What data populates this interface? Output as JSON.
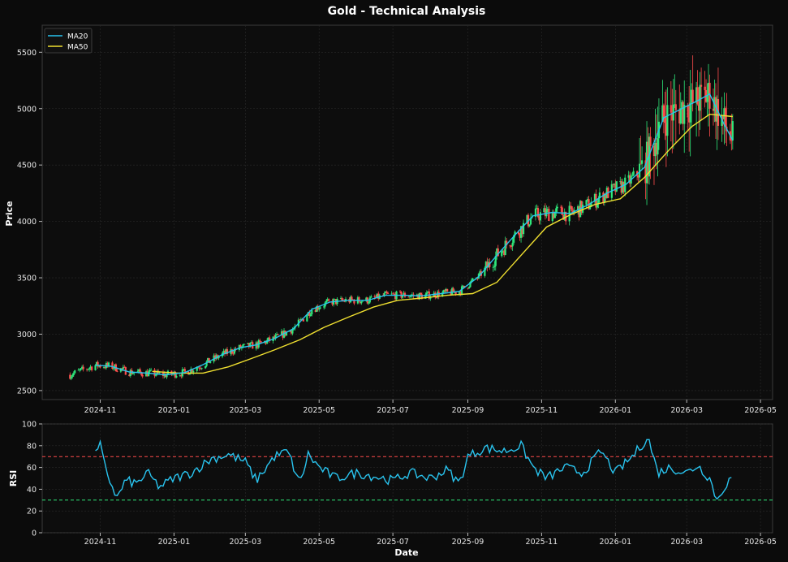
{
  "title": "Gold - Technical Analysis",
  "colors": {
    "background": "#0b0b0b",
    "panel": "#0d0d0d",
    "grid": "#2a2a2a",
    "up": "#2ee87a",
    "down": "#ff4d4d",
    "ma20": "#29c4ef",
    "ma50": "#f0e030",
    "rsi": "#29c4ef",
    "overbought": "#ff4d4d",
    "oversold": "#2ee87a"
  },
  "chart_data": [
    {
      "type": "candlestick",
      "ylabel": "Price",
      "ylim": [
        2420,
        5740
      ],
      "yticks": [
        2500,
        3000,
        3500,
        4000,
        4500,
        5000,
        5500
      ],
      "xticks": [
        "2024-11",
        "2025-01",
        "2025-03",
        "2025-05",
        "2025-07",
        "2025-09",
        "2025-11",
        "2026-01",
        "2026-03",
        "2026-05"
      ],
      "xlim": [
        "2024-09-14",
        "2026-05-11"
      ],
      "grid": true,
      "legend": "top-left",
      "series": [
        {
          "name": "MA20",
          "x": [
            "2024-10-28",
            "2024-11-10",
            "2024-11-25",
            "2024-12-10",
            "2024-12-25",
            "2025-01-10",
            "2025-01-25",
            "2025-02-10",
            "2025-02-25",
            "2025-03-10",
            "2025-03-25",
            "2025-04-10",
            "2025-04-25",
            "2025-05-10",
            "2025-05-25",
            "2025-06-10",
            "2025-06-25",
            "2025-07-10",
            "2025-07-25",
            "2025-08-10",
            "2025-08-25",
            "2025-09-10",
            "2025-09-25",
            "2025-10-10",
            "2025-10-25",
            "2025-11-10",
            "2025-11-25",
            "2025-12-10",
            "2025-12-25",
            "2026-01-10",
            "2026-01-25",
            "2026-02-10",
            "2026-02-25",
            "2026-03-10",
            "2026-03-20",
            "2026-04-01",
            "2026-04-08"
          ],
          "values": [
            2725,
            2715,
            2665,
            2655,
            2640,
            2660,
            2730,
            2820,
            2880,
            2905,
            2960,
            3050,
            3220,
            3285,
            3300,
            3300,
            3345,
            3345,
            3340,
            3360,
            3380,
            3510,
            3700,
            3880,
            4050,
            4080,
            4070,
            4150,
            4250,
            4330,
            4480,
            4920,
            5000,
            5070,
            5130,
            4860,
            4720
          ]
        },
        {
          "name": "MA50",
          "x": [
            "2024-12-14",
            "2025-01-05",
            "2025-01-25",
            "2025-02-15",
            "2025-03-05",
            "2025-03-25",
            "2025-04-15",
            "2025-05-05",
            "2025-05-25",
            "2025-06-15",
            "2025-07-05",
            "2025-07-25",
            "2025-08-15",
            "2025-09-05",
            "2025-09-25",
            "2025-10-15",
            "2025-11-05",
            "2025-11-25",
            "2025-12-15",
            "2026-01-05",
            "2026-01-25",
            "2026-02-15",
            "2026-03-05",
            "2026-03-20",
            "2026-04-08"
          ],
          "values": [
            2670,
            2655,
            2655,
            2710,
            2780,
            2860,
            2950,
            3060,
            3150,
            3240,
            3300,
            3320,
            3345,
            3360,
            3460,
            3700,
            3950,
            4060,
            4150,
            4200,
            4390,
            4640,
            4840,
            4950,
            4930
          ]
        }
      ]
    },
    {
      "type": "line",
      "xlabel": "Date",
      "ylabel": "RSI",
      "ylim": [
        0,
        100
      ],
      "yticks": [
        0,
        20,
        40,
        60,
        80,
        100
      ],
      "xticks": [
        "2024-11",
        "2025-01",
        "2025-03",
        "2025-05",
        "2025-07",
        "2025-09",
        "2025-11",
        "2026-01",
        "2026-03",
        "2026-05"
      ],
      "thresholds": {
        "overbought": 70,
        "oversold": 30
      },
      "grid": true,
      "series": [
        {
          "name": "RSI",
          "x": [
            "2024-10-28",
            "2024-11-01",
            "2024-11-05",
            "2024-11-10",
            "2024-11-15",
            "2024-11-22",
            "2024-12-01",
            "2024-12-10",
            "2024-12-20",
            "2025-01-01",
            "2025-01-15",
            "2025-02-01",
            "2025-02-15",
            "2025-03-01",
            "2025-03-10",
            "2025-03-25",
            "2025-04-05",
            "2025-04-15",
            "2025-04-22",
            "2025-05-01",
            "2025-05-15",
            "2025-06-01",
            "2025-06-15",
            "2025-07-01",
            "2025-07-15",
            "2025-08-01",
            "2025-08-15",
            "2025-08-25",
            "2025-09-01",
            "2025-09-15",
            "2025-10-01",
            "2025-10-15",
            "2025-10-25",
            "2025-11-05",
            "2025-11-20",
            "2025-12-05",
            "2025-12-20",
            "2026-01-01",
            "2026-01-15",
            "2026-01-28",
            "2026-02-05",
            "2026-02-15",
            "2026-03-01",
            "2026-03-10",
            "2026-03-20",
            "2026-03-26",
            "2026-04-01",
            "2026-04-08"
          ],
          "values": [
            72,
            80,
            60,
            45,
            32,
            48,
            45,
            55,
            42,
            50,
            55,
            68,
            72,
            65,
            48,
            70,
            75,
            45,
            72,
            60,
            50,
            55,
            52,
            48,
            55,
            50,
            58,
            45,
            70,
            78,
            75,
            80,
            60,
            50,
            60,
            55,
            75,
            55,
            70,
            88,
            55,
            60,
            55,
            62,
            50,
            30,
            42,
            52
          ]
        }
      ]
    }
  ]
}
